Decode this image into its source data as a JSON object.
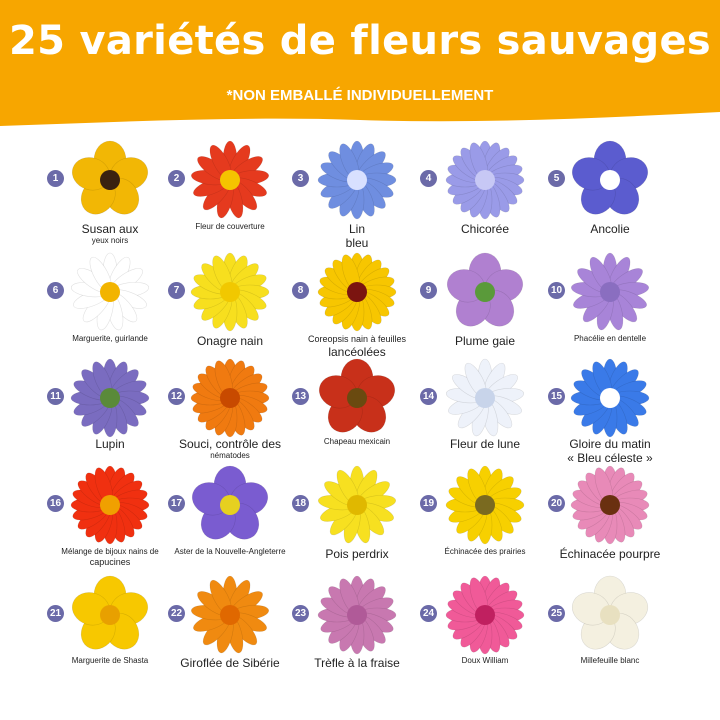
{
  "header": {
    "title": "25 variétés de fleurs sauvages",
    "subtitle": "*NON EMBALLÉ INDIVIDUELLEMENT",
    "background_color": "#f7a600"
  },
  "badge_color": "#6b6aa8",
  "flowers": [
    {
      "number": "1",
      "lines": [
        "Susan aux",
        "yeux noirs"
      ],
      "petal": "#f2b705",
      "center": "#3a2210",
      "icon": "black-eyed-susan-icon"
    },
    {
      "number": "2",
      "lines": [
        "Fleur de couverture"
      ],
      "petal": "#e53a1e",
      "center": "#f5c400",
      "icon": "blanket-flower-icon"
    },
    {
      "number": "3",
      "lines": [
        "Lin",
        "bleu"
      ],
      "petal": "#6f8ee0",
      "center": "#d8e0ff",
      "icon": "blue-flax-icon"
    },
    {
      "number": "4",
      "lines": [
        "Chicorée"
      ],
      "petal": "#9a9be8",
      "center": "#c7c8f5",
      "icon": "chicory-icon"
    },
    {
      "number": "5",
      "lines": [
        "Ancolie"
      ],
      "petal": "#5b5ccf",
      "center": "#ffffff",
      "icon": "columbine-icon"
    },
    {
      "number": "6",
      "lines": [
        "Marguerite, guirlande"
      ],
      "petal": "#ffffff",
      "center": "#f2b400",
      "icon": "garland-daisy-icon"
    },
    {
      "number": "7",
      "lines": [
        "Onagre nain"
      ],
      "petal": "#f7df1e",
      "center": "#f1c800",
      "icon": "evening-primrose-icon"
    },
    {
      "number": "8",
      "lines": [
        "Coreopsis nain à feuilles",
        "lancéolées"
      ],
      "petal": "#f7c600",
      "center": "#7b1410",
      "icon": "coreopsis-icon"
    },
    {
      "number": "9",
      "lines": [
        "Plume gaie"
      ],
      "petal": "#b080d0",
      "center": "#5a9a3a",
      "icon": "blazing-star-icon"
    },
    {
      "number": "10",
      "lines": [
        "Phacélie en dentelle"
      ],
      "petal": "#a884d8",
      "center": "#8a6ec0",
      "icon": "phacelia-icon"
    },
    {
      "number": "11",
      "lines": [
        "Lupin"
      ],
      "petal": "#7a6cc0",
      "center": "#5a8a3a",
      "icon": "lupine-icon"
    },
    {
      "number": "12",
      "lines": [
        "Souci, contrôle des",
        "nématodes"
      ],
      "petal": "#f07a10",
      "center": "#c84a00",
      "icon": "marigold-icon"
    },
    {
      "number": "13",
      "lines": [
        "Chapeau mexicain"
      ],
      "petal": "#c8301a",
      "center": "#6a4a10",
      "icon": "mexican-hat-icon"
    },
    {
      "number": "14",
      "lines": [
        "Fleur de lune"
      ],
      "petal": "#eef2fa",
      "center": "#c8d4ea",
      "icon": "moonflower-icon"
    },
    {
      "number": "15",
      "lines": [
        "Gloire du matin",
        "« Bleu céleste »"
      ],
      "petal": "#3a7ae8",
      "center": "#ffffff",
      "icon": "morning-glory-icon"
    },
    {
      "number": "16",
      "lines": [
        "Mélange de bijoux nains de",
        "capucines"
      ],
      "petal": "#f03010",
      "center": "#f0a000",
      "icon": "nasturtium-icon"
    },
    {
      "number": "17",
      "lines": [
        "Aster de la Nouvelle-Angleterre"
      ],
      "petal": "#7a5cd0",
      "center": "#e6d020",
      "icon": "aster-icon"
    },
    {
      "number": "18",
      "lines": [
        "Pois perdrix"
      ],
      "petal": "#f7e020",
      "center": "#e0b800",
      "icon": "partridge-pea-icon"
    },
    {
      "number": "19",
      "lines": [
        "Échinacée des prairies"
      ],
      "petal": "#f7d000",
      "center": "#7a6a20",
      "icon": "prairie-coneflower-icon"
    },
    {
      "number": "20",
      "lines": [
        "Échinacée pourpre"
      ],
      "petal": "#e88ab8",
      "center": "#6a3010",
      "icon": "purple-coneflower-icon"
    },
    {
      "number": "21",
      "lines": [
        "Marguerite de Shasta"
      ],
      "petal": "#f7c800",
      "center": "#e8a000",
      "icon": "shasta-daisy-icon"
    },
    {
      "number": "22",
      "lines": [
        "Giroflée de Sibérie"
      ],
      "petal": "#f08a10",
      "center": "#e06800",
      "icon": "siberian-wallflower-icon"
    },
    {
      "number": "23",
      "lines": [
        "Trèfle à la fraise"
      ],
      "petal": "#c878b0",
      "center": "#b05a98",
      "icon": "strawberry-clover-icon"
    },
    {
      "number": "24",
      "lines": [
        "Doux William"
      ],
      "petal": "#f05a98",
      "center": "#c02060",
      "icon": "sweet-william-icon"
    },
    {
      "number": "25",
      "lines": [
        "Millefeuille blanc"
      ],
      "petal": "#f4f0e0",
      "center": "#e8e0c0",
      "icon": "white-yarrow-icon"
    }
  ]
}
